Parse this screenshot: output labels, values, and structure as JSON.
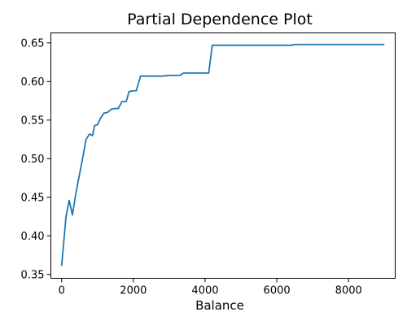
{
  "chart_data": {
    "type": "line",
    "title": "Partial Dependence Plot",
    "xlabel": "Balance",
    "ylabel": "",
    "xlim": [
      -300,
      9300
    ],
    "ylim": [
      0.345,
      0.663
    ],
    "x_ticks": [
      0,
      2000,
      4000,
      6000,
      8000
    ],
    "x_tick_labels": [
      "0",
      "2000",
      "4000",
      "6000",
      "8000"
    ],
    "y_ticks": [
      0.35,
      0.4,
      0.45,
      0.5,
      0.55,
      0.6,
      0.65
    ],
    "y_tick_labels": [
      "0.35",
      "0.40",
      "0.45",
      "0.50",
      "0.55",
      "0.60",
      "0.65"
    ],
    "grid": false,
    "series": [
      {
        "color": "#1f77b4",
        "x": [
          0,
          120,
          210,
          300,
          400,
          500,
          600,
          680,
          780,
          860,
          920,
          1000,
          1080,
          1180,
          1280,
          1380,
          1480,
          1580,
          1680,
          1800,
          1880,
          2000,
          2080,
          2200,
          2500,
          2800,
          3000,
          3200,
          3300,
          3400,
          3600,
          3800,
          4000,
          4100,
          4200,
          4500,
          5000,
          5500,
          6000,
          6400,
          6500,
          7000,
          8000,
          9000
        ],
        "y": [
          0.361,
          0.424,
          0.446,
          0.427,
          0.456,
          0.48,
          0.504,
          0.525,
          0.532,
          0.53,
          0.543,
          0.544,
          0.552,
          0.559,
          0.56,
          0.564,
          0.565,
          0.565,
          0.574,
          0.574,
          0.587,
          0.588,
          0.588,
          0.607,
          0.607,
          0.607,
          0.608,
          0.608,
          0.608,
          0.611,
          0.611,
          0.611,
          0.611,
          0.611,
          0.647,
          0.647,
          0.647,
          0.647,
          0.647,
          0.647,
          0.648,
          0.648,
          0.648,
          0.648
        ]
      }
    ]
  }
}
